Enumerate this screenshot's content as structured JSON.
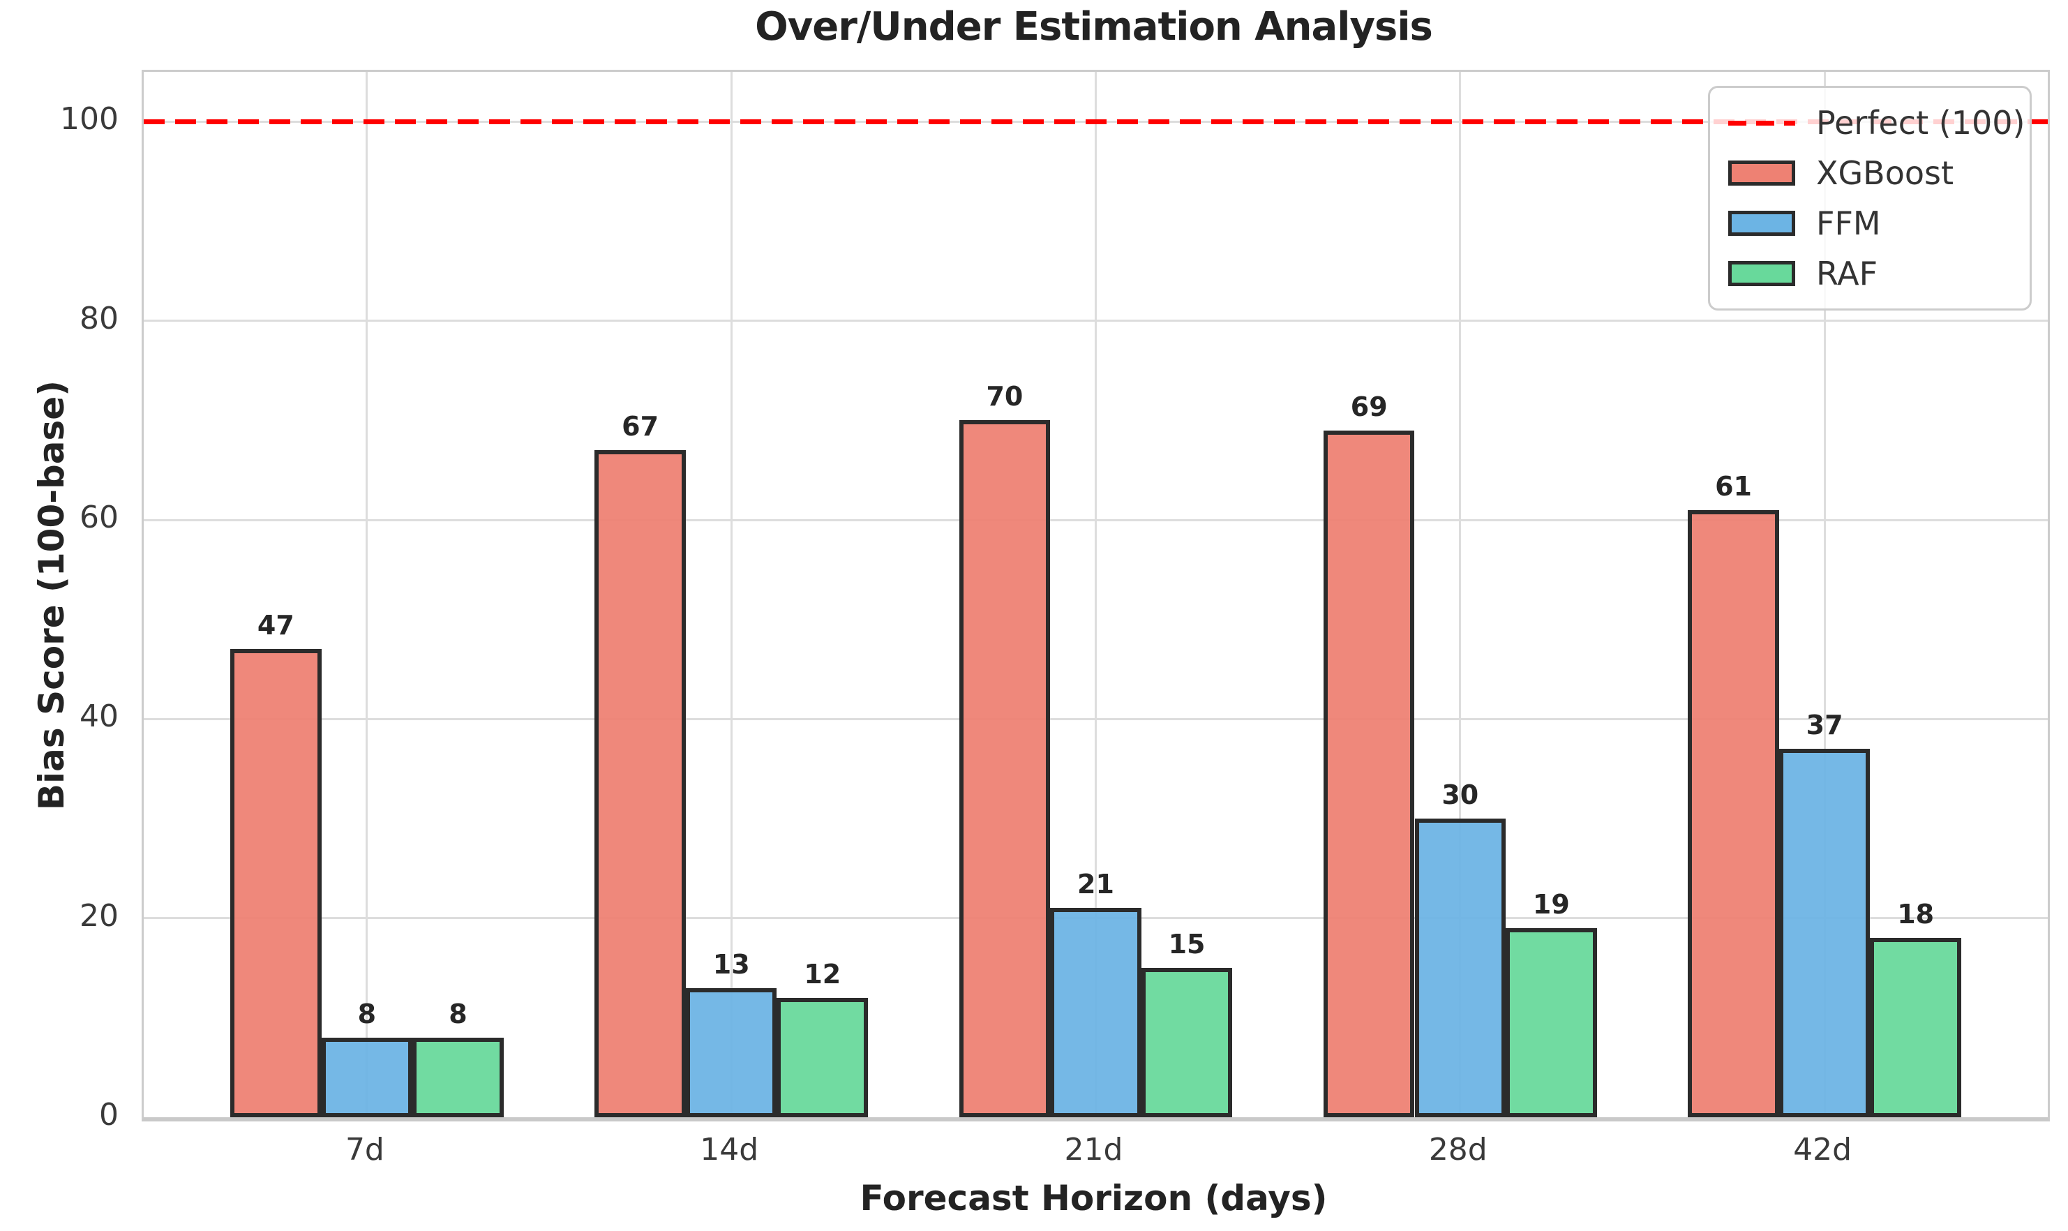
{
  "title": "Over/Under Estimation Analysis",
  "chart_data": {
    "type": "bar",
    "title": "Over/Under Estimation Analysis",
    "xlabel": "Forecast Horizon (days)",
    "ylabel": "Bias Score (100-base)",
    "categories": [
      "7d",
      "14d",
      "21d",
      "28d",
      "42d"
    ],
    "series": [
      {
        "name": "XGBoost",
        "color": "#EE8173",
        "values": [
          47,
          67,
          70,
          69,
          61
        ],
        "value_labels": [
          "47",
          "67",
          "70",
          "69",
          "61"
        ]
      },
      {
        "name": "FFM",
        "color": "#6CB4E4",
        "values": [
          8,
          13,
          21,
          30,
          37
        ],
        "value_labels": [
          "8",
          "13",
          "21",
          "30",
          "37"
        ]
      },
      {
        "name": "RAF",
        "color": "#68D99B",
        "values": [
          8,
          12,
          15,
          19,
          18
        ],
        "value_labels": [
          "8",
          "12",
          "15",
          "19",
          "18"
        ]
      }
    ],
    "reference_line": {
      "label": "Perfect (100)",
      "value": 100,
      "color": "#FF0000",
      "style": "dashed"
    },
    "ylim": [
      0,
      105
    ],
    "yticks": [
      0,
      20,
      40,
      60,
      80,
      100
    ],
    "grid": true,
    "legend_position": "upper right",
    "bar_edge_color": "#2B2B2B",
    "grid_color": "#DDDDDD",
    "background_color": "#FFFFFF"
  }
}
